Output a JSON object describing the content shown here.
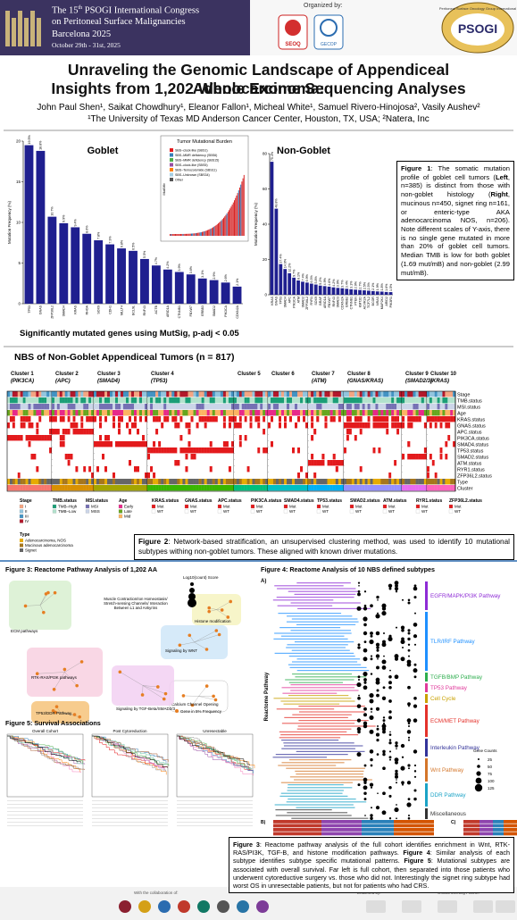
{
  "header": {
    "congress": [
      "The 15",
      "th",
      " PSOGI International Congress"
    ],
    "subtitle": "on Peritoneal Surface Malignancies",
    "city": "Barcelona 2025",
    "dates": "October 29th - 31st, 2025",
    "organized_by": "Organized by:",
    "logos": [
      "SEOQ",
      "GECOP"
    ],
    "psogi_ring": "Peritoneal Surface Oncology Group International",
    "psogi": "PSOGI"
  },
  "title": [
    "Unraveling the Genomic Landscape of Appendiceal Adenocarcinoma:",
    "Insights from 1,202 Whole Exome Sequencing Analyses"
  ],
  "authors": "John Paul Shen¹, Saikat Chowdhury¹, Eleanor Fallon¹, Micheal White¹, Samuel Rivero-Hinojosa², Vasily Aushev²",
  "affiliations": "¹The University of Texas MD Anderson Cancer Center, Houston, TX, USA; ²Natera, Inc",
  "chart_data": [
    {
      "type": "bar",
      "title": "Goblet",
      "ylabel": "Mutation Frequency (%)",
      "color": "#1f1f8f",
      "categories": [
        "TP53",
        "GNAS",
        "ZFP36L2",
        "SMAD4",
        "KRAS",
        "RHOA",
        "SOX9",
        "CDH1",
        "MLLT4",
        "BCL9L",
        "RNF43",
        "ACTB",
        "ARID1A",
        "CTNNB1",
        "FBXW7",
        "ERBB3",
        "SMAD2",
        "PIK3CA",
        "CDKN2A"
      ],
      "values": [
        19.5,
        18.8,
        10.7,
        9.9,
        9.4,
        8.6,
        7.8,
        7.3,
        6.8,
        6.5,
        5.5,
        4.7,
        4.2,
        3.9,
        3.6,
        3.1,
        2.9,
        2.6,
        2.1
      ],
      "value_labels": [
        "19.5%",
        "18.8%",
        "10.7%",
        "9.9%",
        "9.4%",
        "8.6%",
        "7.8%",
        "7.3%",
        "6.8%",
        "6.5%",
        "5.5%",
        "4.7%",
        "4.2%",
        "3.9%",
        "3.6%",
        "3.1%",
        "2.9%",
        "2.6%",
        "2.1%"
      ],
      "ylim": [
        0,
        20
      ],
      "yticks": [
        0,
        5,
        10,
        15,
        20
      ]
    },
    {
      "type": "bar",
      "title": "Non-Goblet",
      "ylabel": "Mutation Frequency (%)",
      "color": "#1f1f8f",
      "categories": [
        "KRAS",
        "GNAS",
        "TP53",
        "SMAD4",
        "APC",
        "PIK3CA",
        "ATM",
        "SMAD2",
        "ZFP36L2",
        "RYR1",
        "SOX9",
        "BRAF",
        "ARID1A",
        "FBXW7",
        "RNF43",
        "SMAD3",
        "CDKN2A",
        "ERBB2",
        "CTNNB1",
        "PTEN",
        "KMT2D",
        "ACVR2A",
        "TCF7L2",
        "BCOR",
        "NRAS",
        "MAP2K4",
        "ARID2",
        "PIK3R1"
      ],
      "values": [
        75.4,
        48.8,
        17.4,
        14.6,
        12.2,
        9.7,
        8.1,
        7.4,
        6.9,
        6.3,
        5.8,
        5.2,
        4.9,
        4.6,
        4.2,
        3.9,
        3.7,
        3.4,
        3.1,
        2.9,
        2.7,
        2.5,
        2.3,
        2.1,
        1.9,
        1.8,
        1.6,
        1.5
      ],
      "value_labels": [
        "75.4%",
        "48.8%",
        "17.4%",
        "14.6%",
        "12.2%",
        "9.7%",
        "8.1%",
        "7.4%",
        "6.9%",
        "6.3%",
        "5.8%",
        "5.2%",
        "4.9%",
        "4.6%",
        "4.2%",
        "3.9%",
        "3.7%",
        "3.4%",
        "3.1%",
        "2.9%",
        "2.7%",
        "2.5%",
        "2.3%",
        "2.1%",
        "1.9%",
        "1.8%",
        "1.6%",
        "1.5%"
      ],
      "ylim": [
        0,
        80
      ],
      "yticks": [
        0,
        20,
        40,
        60,
        80
      ]
    }
  ],
  "tmb_inset": {
    "title": "Tumor Mutational Burden",
    "ylabel": "Mut/Mb",
    "legend": [
      {
        "name": "SBS–clock-like (SBS1)",
        "color": "#e41a1c"
      },
      {
        "name": "SBS–MMR deficiency (SBS6)",
        "color": "#377eb8"
      },
      {
        "name": "SBS–MMR deficiency (SBS15)",
        "color": "#4daf4a"
      },
      {
        "name": "SBS–clock-like (SBS5)",
        "color": "#984ea3"
      },
      {
        "name": "SBS–Temozolomide (SBS11)",
        "color": "#ff7f00"
      },
      {
        "name": "SBS–Unknown (SBS34)",
        "color": "#a6cee3"
      },
      {
        "name": "Other",
        "color": "#555555"
      }
    ]
  },
  "figure1_caption": [
    "Figure 1",
    ": The somatic mutation profile of goblet cell tumors (",
    "Left",
    ", n=385) is distinct from those with non-goblet histology (",
    "Right",
    ", mucinous n=450, signet ring n=161, or enteric-type AKA adenocarcinoma NOS, n=206). Note different scales of Y-axis, there is no single gene mutated in more than 20% of goblet cell tumors. Median TMB is low for both goblet (1.69 mut/mB) and non-goblet (2.99 mut/mB)."
  ],
  "mutsig_note": "Significantly mutated genes using MutSig, p-adj < 0.05",
  "nbs": {
    "title": "NBS of Non-Goblet Appendiceal Tumors (n = 817)",
    "clusters": [
      {
        "name": "Cluster 1",
        "gene": "(PIK3CA)",
        "color": "#f8766d"
      },
      {
        "name": "Cluster 2",
        "gene": "(APC)",
        "color": "#d89000"
      },
      {
        "name": "Cluster 3",
        "gene": "(SMAD4)",
        "color": "#a3a500"
      },
      {
        "name": "Cluster 4",
        "gene": "(TP53)",
        "color": "#39b600"
      },
      {
        "name": "Cluster 5",
        "gene": null,
        "color": "#00bf7d"
      },
      {
        "name": "Cluster 6",
        "gene": null,
        "color": "#00bfc4"
      },
      {
        "name": "Cluster 7",
        "gene": "(ATM)",
        "color": "#00b0f6"
      },
      {
        "name": "Cluster 8",
        "gene": "(GNAS/KRAS)",
        "color": "#9590ff"
      },
      {
        "name": "Cluster 9",
        "gene": "(SMAD2/3)",
        "color": "#e76bf3"
      },
      {
        "name": "Cluster 10",
        "gene": "(KRAS)",
        "color": "#ff62bc"
      }
    ],
    "rows": [
      "Stage",
      "TMB.status",
      "MSI.status",
      "Age",
      "KRAS.status",
      "GNAS.status",
      "APC.status",
      "PIK3CA.status",
      "SMAD4.status",
      "TP53.status",
      "SMAD2.status",
      "ATM.status",
      "RYR1.status",
      "ZFP36L2.status",
      "Type",
      "Cluster"
    ],
    "legend": [
      {
        "title": "Stage",
        "items": [
          "I",
          "II",
          "III",
          "IV"
        ],
        "colors": [
          "#f4a582",
          "#92c5de",
          "#4393c3",
          "#b2182b"
        ]
      },
      {
        "title": "TMB.status",
        "items": [
          "TMB–High",
          "TMB–Low"
        ],
        "colors": [
          "#1b9e77",
          "#b3e2cd"
        ]
      },
      {
        "title": "MSI.status",
        "items": [
          "MSI",
          "MSS"
        ],
        "colors": [
          "#7570b3",
          "#cbd5e8"
        ]
      },
      {
        "title": "Age",
        "items": [
          "Early",
          "Late",
          "Mid"
        ],
        "colors": [
          "#e7298a",
          "#66a61e",
          "#fdb462"
        ]
      },
      {
        "title": "KRAS.status",
        "items": [
          "Mut",
          "WT"
        ],
        "colors": [
          "#e31a1c",
          "#ffffff"
        ]
      },
      {
        "title": "GNAS.status",
        "items": [
          "Mut",
          "WT"
        ],
        "colors": [
          "#e31a1c",
          "#ffffff"
        ]
      },
      {
        "title": "APC.status",
        "items": [
          "Mut",
          "WT"
        ],
        "colors": [
          "#e31a1c",
          "#ffffff"
        ]
      },
      {
        "title": "PIK3CA.status",
        "items": [
          "Mut",
          "WT"
        ],
        "colors": [
          "#e31a1c",
          "#ffffff"
        ]
      },
      {
        "title": "SMAD4.status",
        "items": [
          "Mut",
          "WT"
        ],
        "colors": [
          "#e31a1c",
          "#ffffff"
        ]
      },
      {
        "title": "TP53.status",
        "items": [
          "Mut",
          "WT"
        ],
        "colors": [
          "#e31a1c",
          "#ffffff"
        ]
      },
      {
        "title": "SMAD2.status",
        "items": [
          "Mut",
          "WT"
        ],
        "colors": [
          "#e31a1c",
          "#ffffff"
        ]
      },
      {
        "title": "ATM.status",
        "items": [
          "Mut",
          "WT"
        ],
        "colors": [
          "#e31a1c",
          "#ffffff"
        ]
      },
      {
        "title": "RYR1.status",
        "items": [
          "Mut",
          "WT"
        ],
        "colors": [
          "#e31a1c",
          "#ffffff"
        ]
      },
      {
        "title": "ZFP36L2.status",
        "items": [
          "Mut",
          "WT"
        ],
        "colors": [
          "#e31a1c",
          "#ffffff"
        ]
      }
    ],
    "type_legend": {
      "title": "Type",
      "items": [
        "Adenocarcinoma, NOS",
        "Mucinous adenocarcinoma",
        "Signet"
      ],
      "colors": [
        "#e6ab02",
        "#a6761d",
        "#666666"
      ]
    }
  },
  "figure2_caption": [
    "Figure 2",
    ": Network-based stratification, an unsupervised clustering method, was used to identify 10 mutational subtypes withing non-goblet tumors. These aligned with known driver mutations."
  ],
  "figure3": {
    "title": "Figure 3: Reactome Pathway Analysis of 1,202 AA",
    "score_label": "Log10(count) Score",
    "groups": [
      {
        "name": "ECM pathways",
        "color": "#d8f0d0"
      },
      {
        "name": "RTK-RAS/PI3K pathways",
        "color": "#f8d0e0"
      },
      {
        "name": "TP53/DDR Pathway",
        "color": "#f6c37a"
      },
      {
        "name": "Signaling by WNT",
        "color": "#cfe6f8"
      },
      {
        "name": "Histone modification",
        "color": "#f6f3c0"
      },
      {
        "name": "Calcium Channel Opening",
        "color": "#ffffff"
      },
      {
        "name": "Signaling by TGF-Beta/SMAD2/3",
        "color": "#f2d0f2"
      }
    ],
    "interaction": "Muscle Contraction/Ion Homeostasis/ Stretch-sensing Channels/ Interaction Between L1 and Ankyrins",
    "gene_legend": "Gene in 5% Frequency"
  },
  "figure4": {
    "title": "Figure 4: Reactome Analysis of 10 NBS defined subtypes",
    "panel": "A)",
    "axis": "Reactome Pathway",
    "pathways": [
      {
        "name": "EGFR/MAPK/PI3K Pathway",
        "color": "#8e2bd6"
      },
      {
        "name": "TLR/IRF Pathway",
        "color": "#1e90ff"
      },
      {
        "name": "TGFB/BMP Pathway",
        "color": "#2eae4e"
      },
      {
        "name": "TP53 Pathway",
        "color": "#e0399b"
      },
      {
        "name": "Cell Cycle",
        "color": "#c9a100"
      },
      {
        "name": "ECM/MET Pathway",
        "color": "#e4322b"
      },
      {
        "name": "Interleukin Pathway",
        "color": "#333399"
      },
      {
        "name": "Wnt Pathway",
        "color": "#d4762a"
      },
      {
        "name": "DDR Pathway",
        "color": "#1ba3c6"
      },
      {
        "name": "Miscellaneous",
        "color": "#333333"
      }
    ],
    "gene_counts": {
      "title": "Gene Counts",
      "values": [
        25,
        50,
        75,
        100,
        125
      ]
    },
    "panels": [
      "B)",
      "C)"
    ]
  },
  "figure5": {
    "title": "Figure 5: Survival Associations",
    "panels": [
      "Overall Cohort",
      "Post Cytoreduction",
      "Unresectable"
    ]
  },
  "bottom_caption": [
    "Figure 3",
    ": Reactome pathway analysis of the full cohort identifies enrichment in Wnt, RTK-RAS/PI3K, TGF-B, and histone modification pathways. ",
    "Figure 4",
    ": Similar analysis of each subtype identifies subtype specific mutational patterns. ",
    "Figure 5",
    ": Mutational subtypes are associated with overall survival. Far left is full cohort, then separated into those patients who underwent cytoreductive surgery vs. those who did not. Interestingly the signet ring subtype had worst OS in unresectable patients, but not for patients who had CRS."
  ],
  "footer": {
    "collab": "With the collaboration of:",
    "endorsed": "Endorsed by:",
    "partner": "Official Meeting Partner"
  }
}
